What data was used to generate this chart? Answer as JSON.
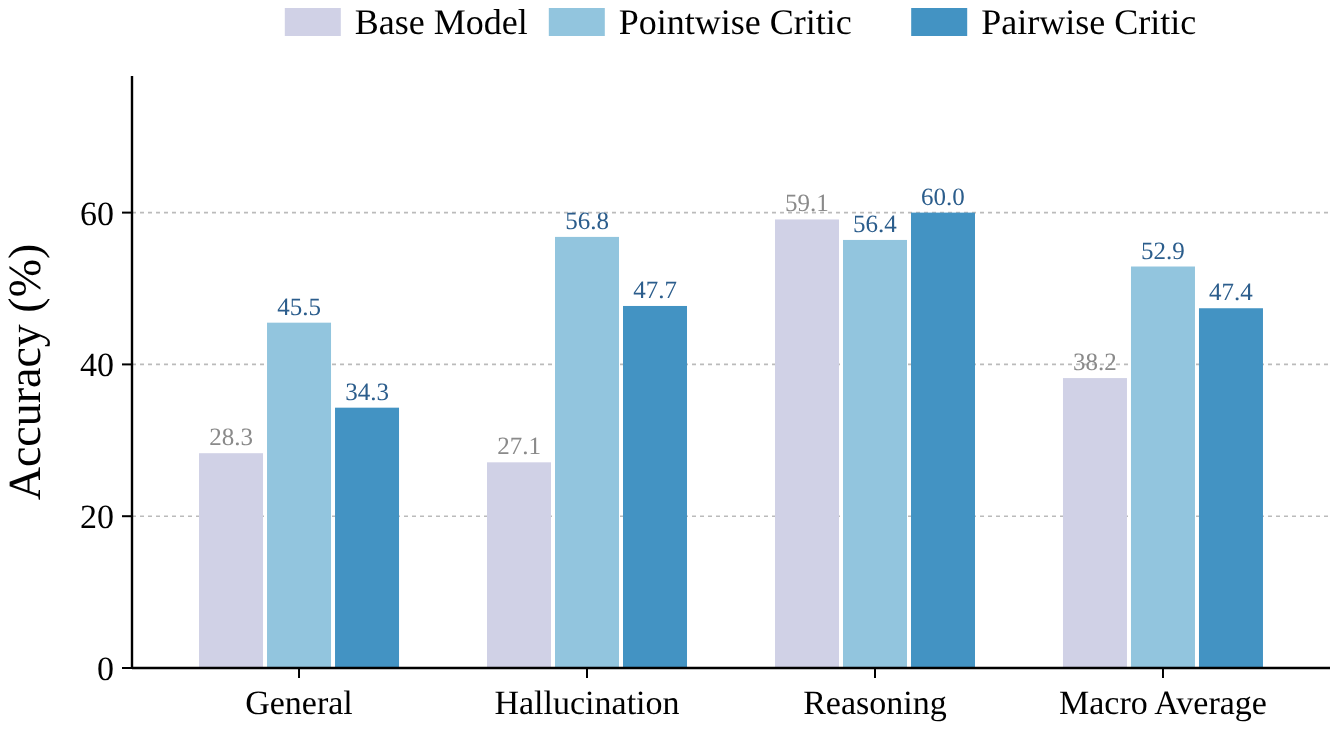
{
  "chart_data": {
    "type": "bar",
    "ylabel": "Accuracy (%)",
    "categories": [
      "General",
      "Hallucination",
      "Reasoning",
      "Macro Average"
    ],
    "series": [
      {
        "name": "Base Model",
        "color": "#d0d1e6",
        "values": [
          28.3,
          27.1,
          59.1,
          38.2
        ],
        "value_labels": [
          "28.3",
          "27.1",
          "59.1",
          "38.2"
        ]
      },
      {
        "name": "Pointwise Critic",
        "color": "#92c5de",
        "values": [
          45.5,
          56.8,
          56.4,
          52.9
        ],
        "value_labels": [
          "45.5",
          "56.8",
          "56.4",
          "52.9"
        ]
      },
      {
        "name": "Pairwise Critic",
        "color": "#4393c3",
        "values": [
          34.3,
          47.7,
          60,
          47.4
        ],
        "value_labels": [
          "34.3",
          "47.7",
          "60.0",
          "47.4"
        ]
      }
    ],
    "ylim": [
      0,
      78
    ],
    "yticks": [
      0,
      20,
      40,
      60
    ],
    "grid": "y",
    "legend": "top"
  }
}
